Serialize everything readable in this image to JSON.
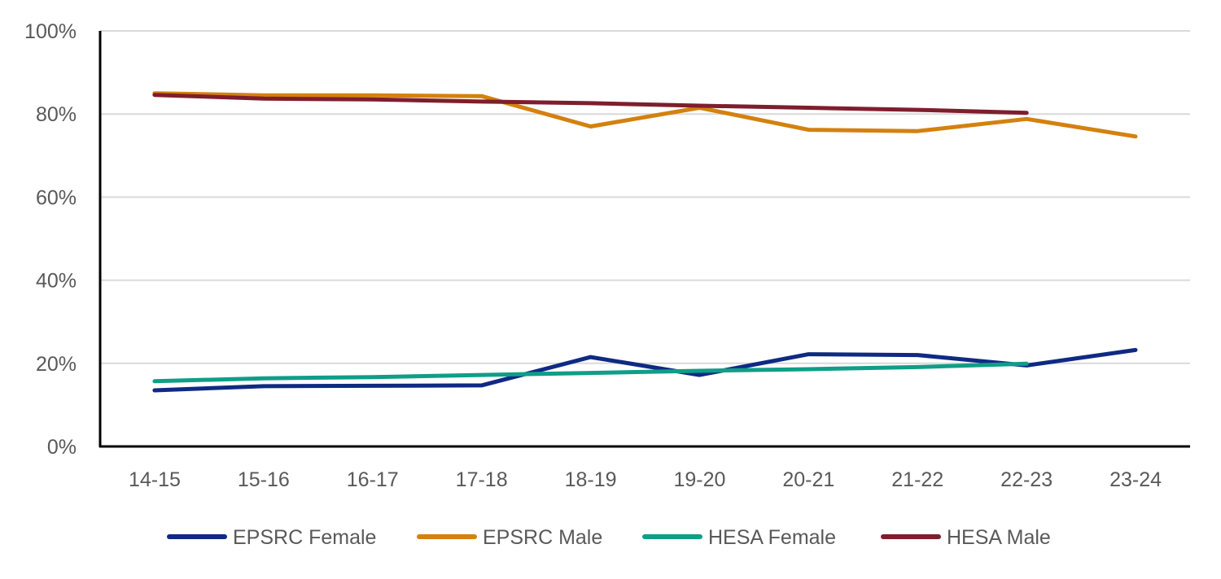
{
  "chart_data": {
    "type": "line",
    "title": "",
    "xlabel": "",
    "ylabel": "",
    "categories": [
      "14-15",
      "15-16",
      "16-17",
      "17-18",
      "18-19",
      "19-20",
      "20-21",
      "21-22",
      "22-23",
      "23-24"
    ],
    "ylim": [
      0,
      100
    ],
    "y_ticks": [
      0,
      20,
      40,
      60,
      80,
      100
    ],
    "y_tick_labels": [
      "0%",
      "20%",
      "40%",
      "60%",
      "80%",
      "100%"
    ],
    "grid": "horizontal",
    "legend_position": "bottom",
    "series": [
      {
        "name": "EPSRC Female",
        "color": "#0e2a83",
        "values": [
          13.5,
          14.5,
          14.6,
          14.7,
          21.5,
          17.2,
          22.2,
          22.0,
          19.5,
          23.2
        ]
      },
      {
        "name": "EPSRC Male",
        "color": "#d4810f",
        "values": [
          85.0,
          84.5,
          84.5,
          84.3,
          77.0,
          81.5,
          76.2,
          75.9,
          78.8,
          74.6
        ]
      },
      {
        "name": "HESA Female",
        "color": "#0f9e87",
        "values": [
          15.7,
          16.4,
          16.7,
          17.2,
          17.7,
          18.2,
          18.6,
          19.1,
          19.9,
          null
        ]
      },
      {
        "name": "HESA Male",
        "color": "#7e1e2d",
        "values": [
          84.6,
          83.7,
          83.5,
          83.0,
          82.6,
          82.0,
          81.5,
          81.0,
          80.3,
          null
        ]
      }
    ]
  }
}
